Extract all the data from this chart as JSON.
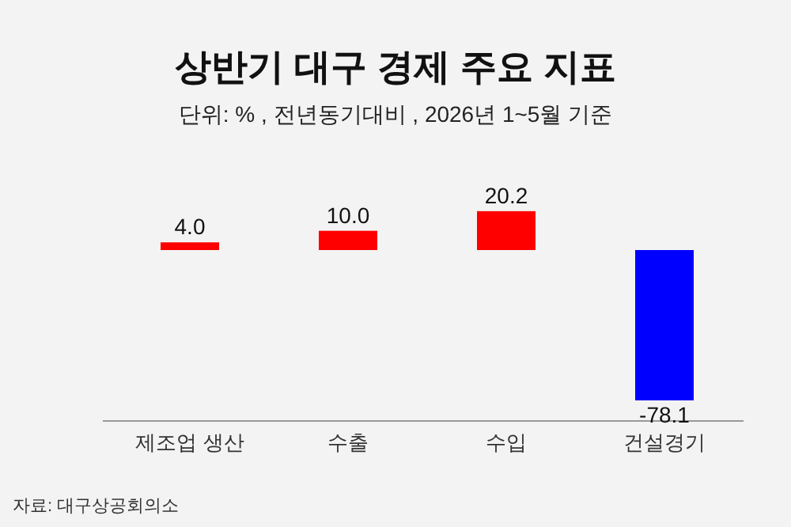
{
  "chart_data": {
    "type": "bar",
    "title": "상반기 대구 경제 주요 지표",
    "subtitle": "단위: % , 전년동기대비 , 2026년 1~5월 기준",
    "categories": [
      "제조업 생산",
      "수출",
      "수입",
      "건설경기"
    ],
    "values": [
      4.0,
      10.0,
      20.2,
      -78.1
    ],
    "colors": [
      "#ff0000",
      "#ff0000",
      "#ff0000",
      "#0000ff"
    ],
    "value_labels": [
      "4.0",
      "10.0",
      "20.2",
      "-78.1"
    ],
    "annotations": [
      "자료: 대구상공회의소"
    ]
  }
}
